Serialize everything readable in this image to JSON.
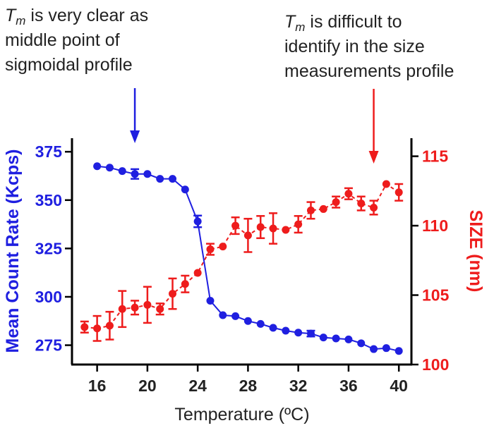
{
  "chart_data": {
    "type": "line",
    "xlabel": "Temperature (ºC)",
    "xlim": [
      14,
      41
    ],
    "xticks": [
      16,
      20,
      24,
      28,
      32,
      36,
      40
    ],
    "left_axis": {
      "label": "Mean Count Rate (Kcps)",
      "color": "#1f1fe0",
      "ylim": [
        265,
        382
      ],
      "ticks": [
        275,
        300,
        325,
        350,
        375
      ]
    },
    "right_axis": {
      "label": "SIZE (nm)",
      "color": "#ee1c1c",
      "ylim": [
        100,
        116.3
      ],
      "ticks": [
        100,
        105,
        110,
        115
      ]
    },
    "series": [
      {
        "name": "Mean Count Rate",
        "axis": "left",
        "style": "solid",
        "color": "#1f1fe0",
        "x": [
          16,
          17,
          18,
          19,
          20,
          21,
          22,
          23,
          24,
          25,
          26,
          27,
          28,
          29,
          30,
          31,
          32,
          33,
          34,
          35,
          36,
          37,
          38,
          39,
          40
        ],
        "y": [
          367.5,
          366.8,
          365,
          363.5,
          363.5,
          361,
          361,
          355.5,
          339,
          298,
          290.5,
          290,
          287.5,
          286,
          284,
          282.5,
          281.5,
          281,
          279,
          278.5,
          278,
          276,
          273,
          273.5,
          272
        ],
        "err": [
          0,
          0,
          0,
          2.5,
          0,
          0,
          0,
          0,
          3,
          0,
          0,
          0,
          0,
          0,
          0,
          0,
          0,
          1.5,
          0,
          0,
          0,
          0,
          0,
          0,
          0
        ]
      },
      {
        "name": "SIZE",
        "axis": "right",
        "style": "dashed",
        "color": "#ee1c1c",
        "x": [
          15,
          16,
          17,
          18,
          19,
          20,
          21,
          22,
          23,
          24,
          25,
          26,
          27,
          28,
          29,
          30,
          31,
          32,
          33,
          34,
          35,
          36,
          37,
          38,
          39,
          40
        ],
        "y": [
          102.7,
          102.6,
          102.8,
          104,
          104.1,
          104.3,
          104,
          105.1,
          105.8,
          106.6,
          108.3,
          108.5,
          110,
          109.3,
          109.9,
          109.8,
          109.7,
          110.1,
          111.1,
          111.2,
          111.7,
          112.3,
          111.6,
          111.3,
          113,
          112.4
        ],
        "err": [
          0.4,
          0.9,
          1.0,
          1.3,
          0.5,
          1.3,
          0.4,
          1.1,
          0.6,
          0,
          0.4,
          0,
          0.6,
          1.2,
          0.8,
          1.1,
          0,
          0.6,
          0.6,
          0,
          0.4,
          0.4,
          0.5,
          0.5,
          0,
          0.6
        ]
      }
    ],
    "annotations": [
      {
        "id": "left",
        "tm": "T",
        "tm_sub": "m",
        "line1_rest": " is very clear as",
        "line2": "middle point of",
        "line3": "sigmoidal profile",
        "arrow_x": 19,
        "color": "#1f1fe0"
      },
      {
        "id": "right",
        "tm": "T",
        "tm_sub": "m",
        "line1_rest": " is difficult to",
        "line2": "identify in the size",
        "line3": "measurements profile",
        "arrow_x": 38,
        "color": "#ee1c1c"
      }
    ]
  }
}
